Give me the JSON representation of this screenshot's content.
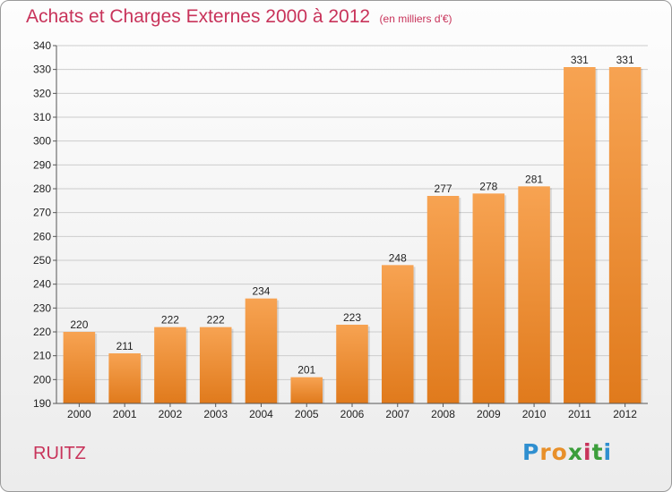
{
  "header": {
    "title": "Achats et Charges Externes 2000 à 2012",
    "unit": "(en milliers d'€)"
  },
  "footer": {
    "commune": "RUITZ",
    "logo": [
      "P",
      "r",
      "o",
      "x",
      "i",
      "t",
      "i"
    ],
    "logo_colors": [
      "#2f8fd0",
      "#e8902a",
      "#e8902a",
      "#3b9e3b",
      "#c8335a",
      "#3b9e3b",
      "#2f8fd0"
    ]
  },
  "colors": {
    "title": "#c8335a",
    "bar_top": "#f7a352",
    "bar_bottom": "#e07a1c",
    "grid": "#cccccc"
  },
  "chart_data": {
    "type": "bar",
    "title": "Achats et Charges Externes 2000 à 2012",
    "subtitle": "(en milliers d'€)",
    "categories": [
      "2000",
      "2001",
      "2002",
      "2003",
      "2004",
      "2005",
      "2006",
      "2007",
      "2008",
      "2009",
      "2010",
      "2011",
      "2012"
    ],
    "values": [
      220,
      211,
      222,
      222,
      234,
      201,
      223,
      248,
      277,
      278,
      281,
      331,
      331
    ],
    "ylim": [
      190,
      340
    ],
    "yticks": [
      190,
      200,
      210,
      220,
      230,
      240,
      250,
      260,
      270,
      280,
      290,
      300,
      310,
      320,
      330,
      340
    ],
    "grid": true,
    "legend": "none"
  }
}
